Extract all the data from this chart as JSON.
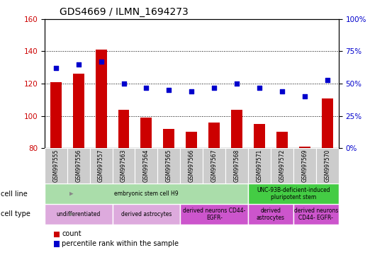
{
  "title": "GDS4669 / ILMN_1694273",
  "samples": [
    "GSM997555",
    "GSM997556",
    "GSM997557",
    "GSM997563",
    "GSM997564",
    "GSM997565",
    "GSM997566",
    "GSM997567",
    "GSM997568",
    "GSM997571",
    "GSM997572",
    "GSM997569",
    "GSM997570"
  ],
  "count_values": [
    121,
    126,
    141,
    104,
    99,
    92,
    90,
    96,
    104,
    95,
    90,
    81,
    111
  ],
  "percentile_values": [
    62,
    65,
    67,
    50,
    47,
    45,
    44,
    47,
    50,
    47,
    44,
    40,
    53
  ],
  "ylim_left": [
    80,
    160
  ],
  "ylim_right": [
    0,
    100
  ],
  "yticks_left": [
    80,
    100,
    120,
    140,
    160
  ],
  "yticks_right": [
    0,
    25,
    50,
    75,
    100
  ],
  "bar_color": "#cc0000",
  "scatter_color": "#0000cc",
  "cell_line_groups": [
    {
      "label": "embryonic stem cell H9",
      "start": 0,
      "end": 9,
      "color": "#aaddaa"
    },
    {
      "label": "UNC-93B-deficient-induced\npluripotent stem",
      "start": 9,
      "end": 13,
      "color": "#44cc44"
    }
  ],
  "cell_type_groups": [
    {
      "label": "undifferentiated",
      "start": 0,
      "end": 3,
      "color": "#ddaadd"
    },
    {
      "label": "derived astrocytes",
      "start": 3,
      "end": 6,
      "color": "#ddaadd"
    },
    {
      "label": "derived neurons CD44-\nEGFR-",
      "start": 6,
      "end": 9,
      "color": "#cc55cc"
    },
    {
      "label": "derived\nastrocytes",
      "start": 9,
      "end": 11,
      "color": "#cc55cc"
    },
    {
      "label": "derived neurons\nCD44- EGFR-",
      "start": 11,
      "end": 13,
      "color": "#cc55cc"
    }
  ],
  "legend_count_color": "#cc0000",
  "legend_percentile_color": "#0000cc",
  "tick_label_color_left": "#cc0000",
  "tick_label_color_right": "#0000cc",
  "sample_box_color": "#cccccc",
  "figsize": [
    5.46,
    3.84
  ],
  "dpi": 100
}
